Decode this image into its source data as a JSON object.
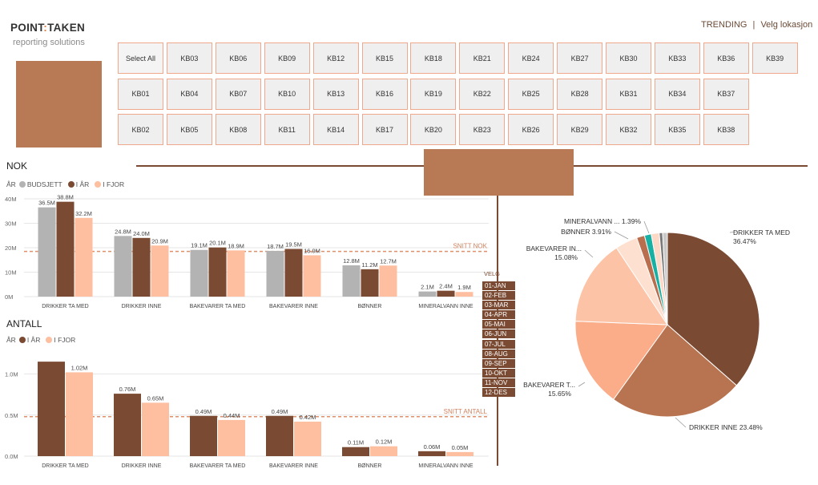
{
  "header": {
    "logo_left": "POINT",
    "logo_sep": ":",
    "logo_right": "TAKEN",
    "logo_sub": "reporting solutions",
    "trending": "TRENDING",
    "separator": "|",
    "location": "Velg lokasjon"
  },
  "slicer": {
    "rows": [
      [
        "Select All",
        "KB03",
        "KB06",
        "KB09",
        "KB12",
        "KB15",
        "KB18",
        "KB21",
        "KB24",
        "KB27",
        "KB30",
        "KB33",
        "KB36",
        "KB39"
      ],
      [
        "KB01",
        "KB04",
        "KB07",
        "KB10",
        "KB13",
        "KB16",
        "KB19",
        "KB22",
        "KB25",
        "KB28",
        "KB31",
        "KB34",
        "KB37"
      ],
      [
        "KB02",
        "KB05",
        "KB08",
        "KB11",
        "KB14",
        "KB17",
        "KB20",
        "KB23",
        "KB26",
        "KB29",
        "KB32",
        "KB35",
        "KB38"
      ]
    ]
  },
  "nok": {
    "title": "NOK",
    "legend_prefix": "ÅR",
    "legend": [
      "BUDSJETT",
      "I ÅR",
      "I FJOR"
    ],
    "avg_label": "SNITT NOK"
  },
  "antall": {
    "title": "ANTALL",
    "legend_prefix": "ÅR",
    "legend": [
      "I ÅR",
      "I FJOR"
    ],
    "avg_label": "SNITT ANTALL"
  },
  "months": {
    "label": "VELG",
    "items": [
      "01-JAN",
      "02-FEB",
      "03-MAR",
      "04-APR",
      "05-MAI",
      "06-JUN",
      "07-JUL",
      "08-AUG",
      "09-SEP",
      "10-OKT",
      "11-NOV",
      "12-DES"
    ]
  },
  "colors": {
    "budget": "#b3b3b3",
    "current": "#7b4a33",
    "previous": "#fdbfa0",
    "avg_line": "#e0906a",
    "accent_box": "#b87955"
  },
  "chart_data": [
    {
      "type": "bar",
      "categories": [
        "DRIKKER TA MED",
        "DRIKKER INNE",
        "BAKEVARER TA MED",
        "BAKEVARER INNE",
        "BØNNER",
        "MINERALVANN INNE"
      ],
      "series": [
        {
          "name": "BUDSJETT",
          "values": [
            36.5,
            24.8,
            19.1,
            18.7,
            12.8,
            2.1
          ],
          "labels": [
            "36.5M",
            "24.8M",
            "19.1M",
            "18.7M",
            "12.8M",
            "2.1M"
          ]
        },
        {
          "name": "I ÅR",
          "values": [
            38.8,
            24.0,
            20.1,
            19.5,
            11.2,
            2.4
          ],
          "labels": [
            "38.8M",
            "24.0M",
            "20.1M",
            "19.5M",
            "11.2M",
            "2.4M"
          ]
        },
        {
          "name": "I FJOR",
          "values": [
            32.2,
            20.9,
            18.9,
            16.9,
            12.7,
            1.9
          ],
          "labels": [
            "32.2M",
            "20.9M",
            "18.9M",
            "16.9M",
            "12.7M",
            "1.9M"
          ]
        }
      ],
      "yticks": [
        "0M",
        "10M",
        "20M",
        "30M",
        "40M"
      ],
      "ylim": [
        0,
        40
      ],
      "average": 18.5
    },
    {
      "type": "bar",
      "categories": [
        "DRIKKER TA MED",
        "DRIKKER INNE",
        "BAKEVARER TA MED",
        "BAKEVARER INNE",
        "BØNNER",
        "MINERALVANN INNE"
      ],
      "series": [
        {
          "name": "I ÅR",
          "values": [
            1.15,
            0.76,
            0.49,
            0.49,
            0.11,
            0.06
          ],
          "labels": [
            "",
            "0.76M",
            "0.49M",
            "0.49M",
            "0.11M",
            "0.06M"
          ]
        },
        {
          "name": "I FJOR",
          "values": [
            1.02,
            0.65,
            0.44,
            0.42,
            0.12,
            0.05
          ],
          "labels": [
            "1.02M",
            "0.65M",
            "0.44M",
            "0.42M",
            "0.12M",
            "0.05M"
          ]
        }
      ],
      "yticks": [
        "0.0M",
        "0.5M",
        "1.0M"
      ],
      "ylim": [
        0,
        1.2
      ],
      "average": 0.48
    },
    {
      "type": "pie",
      "slices": [
        {
          "label": "DRIKKER TA MED",
          "value": 36.47,
          "pct": "36.47%",
          "color": "#7b4a33"
        },
        {
          "label": "DRIKKER INNE",
          "value": 23.48,
          "pct": "23.48%",
          "color": "#b87350"
        },
        {
          "label": "BAKEVARER T...",
          "value": 15.65,
          "pct": "15.65%",
          "color": "#fbad89"
        },
        {
          "label": "BAKEVARER IN...",
          "value": 15.08,
          "pct": "15.08%",
          "color": "#fcc3a6"
        },
        {
          "label": "BØNNER",
          "value": 3.91,
          "pct": "3.91%",
          "color": "#fde0d0"
        },
        {
          "label": "",
          "value": 1.4,
          "pct": "",
          "color": "#b96f4e"
        },
        {
          "label": "",
          "value": 1.2,
          "pct": "",
          "color": "#18b0a3"
        },
        {
          "label": "MINERALVANN ...",
          "value": 1.39,
          "pct": "1.39%",
          "color": "#fcd8c6"
        },
        {
          "label": "",
          "value": 0.6,
          "pct": "",
          "color": "#7a7a7a"
        },
        {
          "label": "",
          "value": 0.82,
          "pct": "",
          "color": "#c9c9c9"
        }
      ]
    }
  ]
}
